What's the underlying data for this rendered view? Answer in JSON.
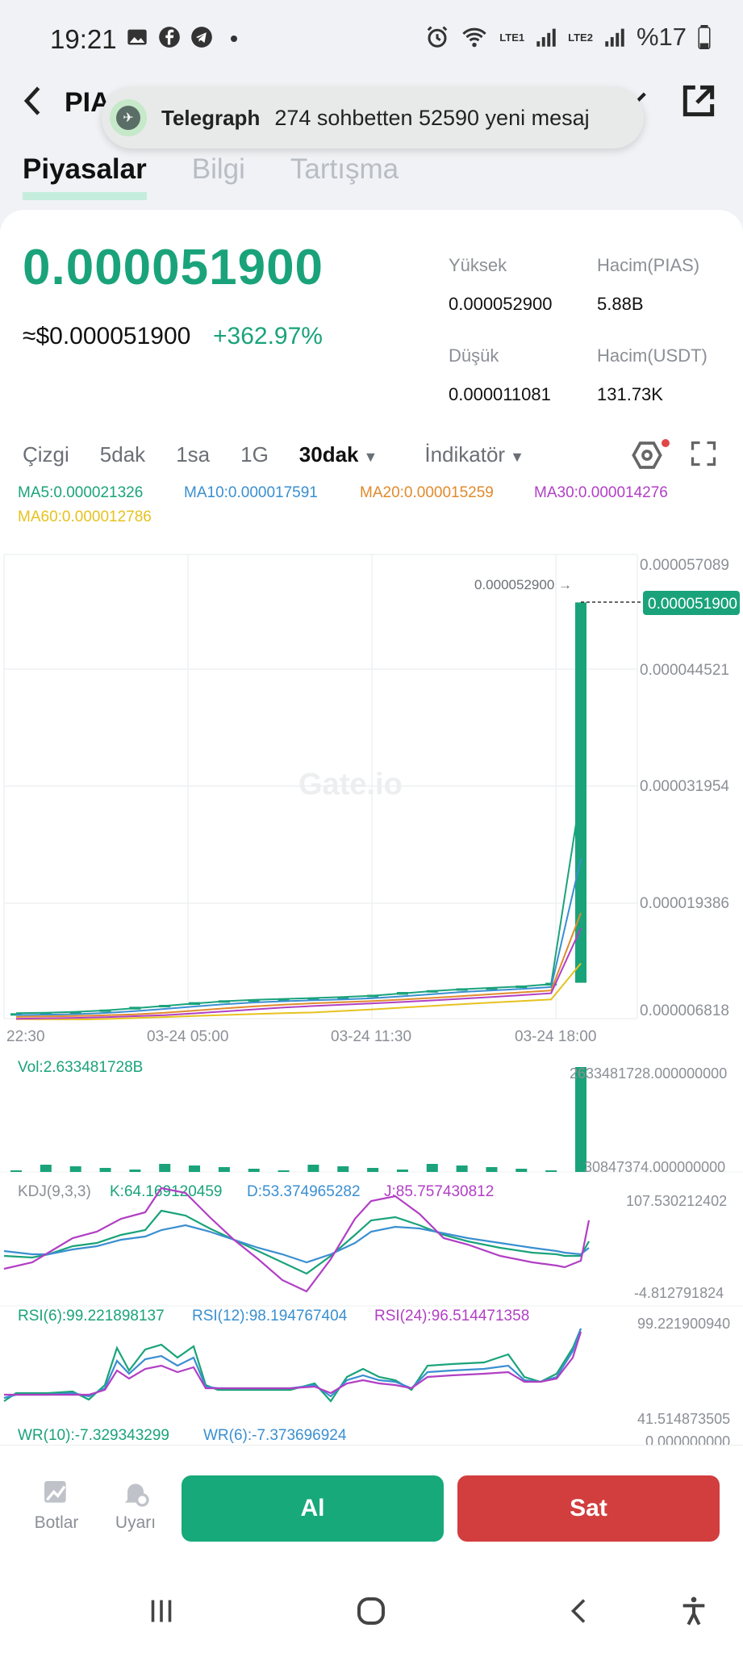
{
  "status": {
    "time": "19:21",
    "battery": "%17",
    "lte1": "LTE1",
    "lte2": "LTE2"
  },
  "header": {
    "pair_partial": "PIA"
  },
  "toast": {
    "app": "Telegraph",
    "message": "274 sohbetten 52590 yeni mesaj"
  },
  "tabs": [
    "Piyasalar",
    "Bilgi",
    "Tartışma"
  ],
  "ticker": {
    "price": "0.000051900",
    "usd_price": "≈$0.000051900",
    "change": "+362.97%",
    "high_label": "Yüksek",
    "high_value": "0.000052900",
    "vol_base_label": "Hacim(PIAS)",
    "vol_base_value": "5.88B",
    "low_label": "Düşük",
    "low_value": "0.000011081",
    "vol_quote_label": "Hacim(USDT)",
    "vol_quote_value": "131.73K"
  },
  "chart_tabs": [
    "Çizgi",
    "5dak",
    "1sa",
    "1G",
    "30dak",
    "İndikatör"
  ],
  "ma": {
    "ma5": "MA5:0.000021326",
    "ma10": "MA10:0.000017591",
    "ma20": "MA20:0.000015259",
    "ma30": "MA30:0.000014276",
    "ma60": "MA60:0.000012786"
  },
  "watermark": "Gate.io",
  "chart_data": {
    "type": "candlestick",
    "y_ticks": [
      "0.000057089",
      "0.000044521",
      "0.000031954",
      "0.000019386",
      "0.000006818"
    ],
    "x_ticks": [
      "22:30",
      "03-24 05:00",
      "03-24 11:30",
      "03-24 18:00"
    ],
    "high_marker": "0.000052900 →",
    "current_price_tag": "0.000051900",
    "ylim": [
      6.818e-06,
      5.7089e-05
    ],
    "closes_approx": [
      7.4e-06,
      7.5e-06,
      7.6e-06,
      7.8e-06,
      8.1e-06,
      8.3e-06,
      8.6e-06,
      8.8e-06,
      8.9e-06,
      9e-06,
      9.1e-06,
      9.2e-06,
      9.4e-06,
      9.7e-06,
      9.9e-06,
      1.01e-05,
      1.02e-05,
      1.04e-05,
      1.07e-05,
      5.19e-05
    ],
    "colors": {
      "up": "#1aa37a",
      "down": "#d23d3e",
      "ma5": "#1aa37a",
      "ma10": "#3a8fd0",
      "ma20": "#e08a2c",
      "ma30": "#b13fc4",
      "ma60": "#e6c21f"
    }
  },
  "volume": {
    "label": "Vol:2.633481728B",
    "max_label": "2633481728.000000000",
    "min_label": "30847374.000000000"
  },
  "kdj": {
    "title": "KDJ(9,3,3)",
    "k": "K:64.169120459",
    "d": "D:53.374965282",
    "j": "J:85.757430812",
    "max": "107.530212402",
    "min": "-4.812791824"
  },
  "rsi": {
    "r6": "RSI(6):99.221898137",
    "r12": "RSI(12):98.194767404",
    "r24": "RSI(24):96.514471358",
    "max": "99.221900940",
    "min": "41.514873505"
  },
  "wr": {
    "w10": "WR(10):-7.329343299",
    "w6": "WR(6):-7.373696924",
    "max": "0.000000000"
  },
  "bottom": {
    "bots": "Botlar",
    "alerts": "Uyarı",
    "buy": "Al",
    "sell": "Sat"
  }
}
